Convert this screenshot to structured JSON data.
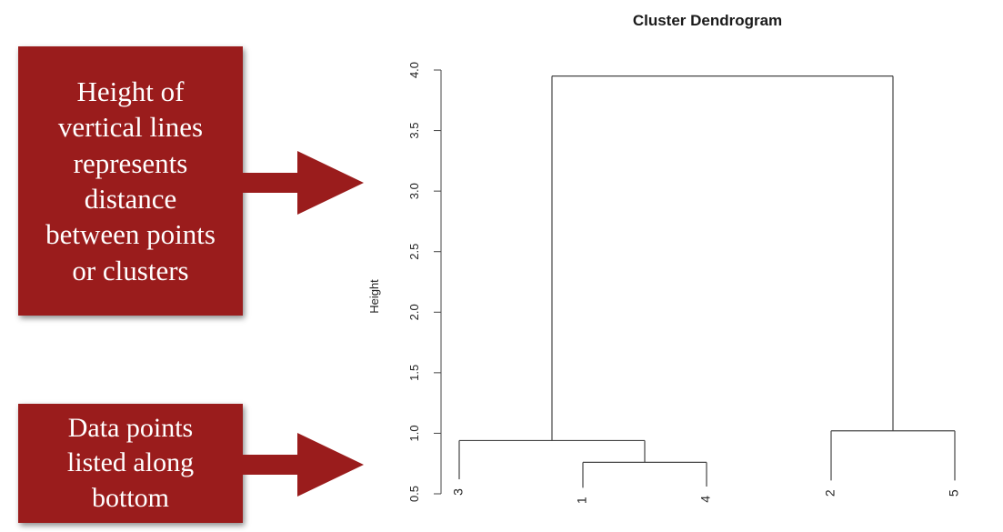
{
  "callouts": {
    "top": {
      "text": "Height of\nvertical lines\nrepresents\ndistance\nbetween points\nor clusters"
    },
    "bottom": {
      "text": "Data points\nlisted along\nbottom"
    }
  },
  "colors": {
    "callout_bg": "#9a1c1c",
    "arrow": "#9a1c1c",
    "line": "#444444"
  },
  "chart_data": {
    "type": "dendrogram",
    "title": "Cluster Dendrogram",
    "ylabel": "Height",
    "ylim": [
      0.5,
      4.0
    ],
    "y_ticks": [
      "0.5",
      "1.0",
      "1.5",
      "2.0",
      "2.5",
      "3.0",
      "3.5",
      "4.0"
    ],
    "leaves": [
      {
        "label": "3",
        "height": 0.62
      },
      {
        "label": "1",
        "height": 0.55
      },
      {
        "label": "4",
        "height": 0.56
      },
      {
        "label": "2",
        "height": 0.61
      },
      {
        "label": "5",
        "height": 0.61
      }
    ],
    "merges": [
      {
        "members": [
          "1",
          "4"
        ],
        "height": 0.76
      },
      {
        "members": [
          "3",
          "1",
          "4"
        ],
        "height": 0.94
      },
      {
        "members": [
          "2",
          "5"
        ],
        "height": 1.02
      },
      {
        "members": [
          "3",
          "1",
          "4",
          "2",
          "5"
        ],
        "height": 3.95
      }
    ]
  }
}
